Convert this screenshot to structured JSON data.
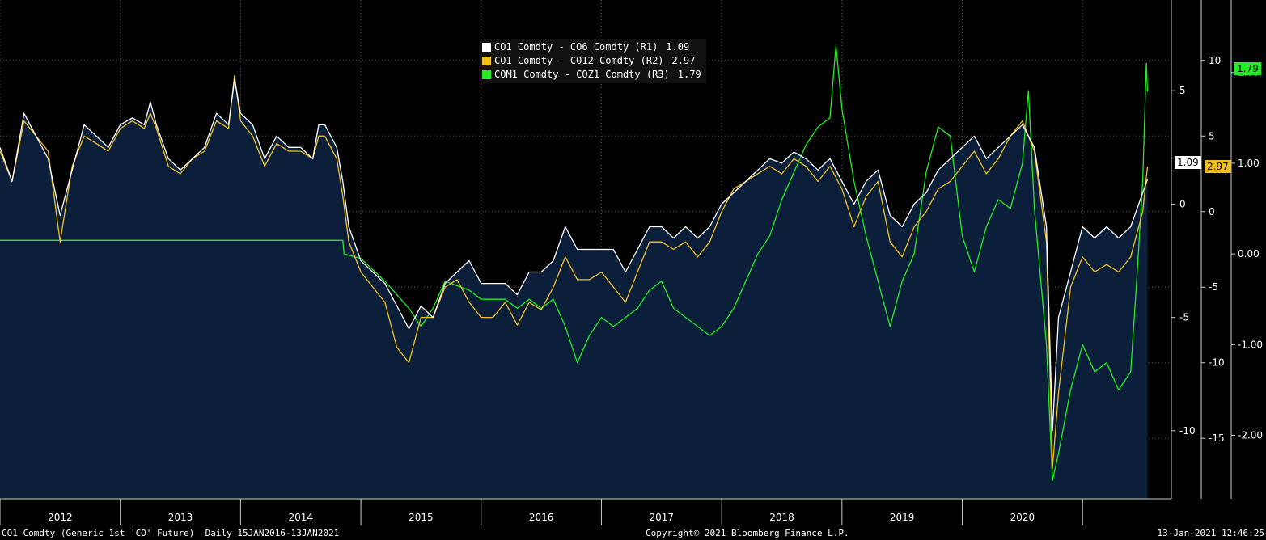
{
  "legend": [
    {
      "label": "CO1 Comdty - CO6 Comdty (R1)",
      "value": "1.09",
      "color": "#ffffff"
    },
    {
      "label": "CO1 Comdty - CO12 Comdty (R2)",
      "value": "2.97",
      "color": "#f0c020"
    },
    {
      "label": "COM1 Comdty - COZ1 Comdty (R3)",
      "value": "1.79",
      "color": "#22ee22"
    }
  ],
  "footer": {
    "left": "CO1 Comdty (Generic 1st 'CO' Future)  Daily 15JAN2016-13JAN2021",
    "center": "Copyright© 2021 Bloomberg Finance L.P.",
    "right": "13-Jan-2021 12:46:25"
  },
  "last_tags": {
    "r1": "1.09",
    "r2": "2.97",
    "r3": "1.79"
  },
  "colors": {
    "background": "#000000",
    "area": "#0b1e3a",
    "r1": "#ffffff",
    "r2": "#f0c020",
    "r3": "#22ee22"
  },
  "chart_data": {
    "type": "line",
    "x_tick_labels": [
      "2012",
      "2013",
      "2014",
      "2015",
      "2016",
      "2017",
      "2018",
      "2019",
      "2020"
    ],
    "axis_r1": {
      "ticks": [
        -10,
        -5,
        0,
        5
      ],
      "range": [
        -13,
        9
      ]
    },
    "axis_r2": {
      "ticks": [
        -15,
        -10,
        -5,
        0,
        5,
        10
      ],
      "range": [
        -19,
        14
      ]
    },
    "axis_r3": {
      "ticks": [
        "2.00",
        "1.00",
        "0.00",
        "-1.00",
        "-2.00"
      ],
      "range": [
        -2.7,
        2.8
      ]
    },
    "grid": true,
    "series": [
      {
        "name": "CO1 Comdty - CO6 Comdty (R1)",
        "axis": "r1",
        "area": true,
        "points": [
          [
            2011.5,
            2.5
          ],
          [
            2011.6,
            1
          ],
          [
            2011.7,
            4
          ],
          [
            2011.8,
            3
          ],
          [
            2011.9,
            2
          ],
          [
            2012.0,
            -0.5
          ],
          [
            2012.1,
            1.5
          ],
          [
            2012.2,
            3.5
          ],
          [
            2012.3,
            3
          ],
          [
            2012.4,
            2.5
          ],
          [
            2012.5,
            3.5
          ],
          [
            2012.6,
            3.8
          ],
          [
            2012.7,
            3.5
          ],
          [
            2012.75,
            4.5
          ],
          [
            2012.8,
            3.5
          ],
          [
            2012.9,
            2
          ],
          [
            2013.0,
            1.5
          ],
          [
            2013.1,
            2
          ],
          [
            2013.2,
            2.5
          ],
          [
            2013.3,
            4
          ],
          [
            2013.4,
            3.5
          ],
          [
            2013.45,
            5.5
          ],
          [
            2013.5,
            4
          ],
          [
            2013.6,
            3.5
          ],
          [
            2013.7,
            2
          ],
          [
            2013.8,
            3
          ],
          [
            2013.9,
            2.5
          ],
          [
            2014.0,
            2.5
          ],
          [
            2014.1,
            2
          ],
          [
            2014.15,
            3.5
          ],
          [
            2014.2,
            3.5
          ],
          [
            2014.3,
            2.5
          ],
          [
            2014.35,
            1
          ],
          [
            2014.4,
            -1
          ],
          [
            2014.5,
            -2.5
          ],
          [
            2014.6,
            -3
          ],
          [
            2014.7,
            -3.5
          ],
          [
            2014.8,
            -4.5
          ],
          [
            2014.9,
            -5.5
          ],
          [
            2015.0,
            -4.5
          ],
          [
            2015.1,
            -5
          ],
          [
            2015.2,
            -3.5
          ],
          [
            2015.3,
            -3
          ],
          [
            2015.4,
            -2.5
          ],
          [
            2015.5,
            -3.5
          ],
          [
            2015.6,
            -3.5
          ],
          [
            2015.7,
            -3.5
          ],
          [
            2015.8,
            -4
          ],
          [
            2015.9,
            -3
          ],
          [
            2016.0,
            -3
          ],
          [
            2016.1,
            -2.5
          ],
          [
            2016.2,
            -1
          ],
          [
            2016.3,
            -2
          ],
          [
            2016.4,
            -2
          ],
          [
            2016.5,
            -2
          ],
          [
            2016.6,
            -2
          ],
          [
            2016.7,
            -3
          ],
          [
            2016.8,
            -2
          ],
          [
            2016.9,
            -1
          ],
          [
            2017.0,
            -1
          ],
          [
            2017.1,
            -1.5
          ],
          [
            2017.2,
            -1
          ],
          [
            2017.3,
            -1.5
          ],
          [
            2017.4,
            -1
          ],
          [
            2017.5,
            0
          ],
          [
            2017.6,
            0.5
          ],
          [
            2017.7,
            1
          ],
          [
            2017.8,
            1.5
          ],
          [
            2017.9,
            2
          ],
          [
            2018.0,
            1.8
          ],
          [
            2018.1,
            2.3
          ],
          [
            2018.2,
            2
          ],
          [
            2018.3,
            1.5
          ],
          [
            2018.4,
            2
          ],
          [
            2018.5,
            1
          ],
          [
            2018.6,
            0
          ],
          [
            2018.7,
            1
          ],
          [
            2018.8,
            1.5
          ],
          [
            2018.9,
            -0.5
          ],
          [
            2019.0,
            -1
          ],
          [
            2019.1,
            0
          ],
          [
            2019.2,
            0.5
          ],
          [
            2019.3,
            1.5
          ],
          [
            2019.4,
            2
          ],
          [
            2019.5,
            2.5
          ],
          [
            2019.6,
            3
          ],
          [
            2019.7,
            2
          ],
          [
            2019.8,
            2.5
          ],
          [
            2019.9,
            3
          ],
          [
            2020.0,
            3.5
          ],
          [
            2020.1,
            2.5
          ],
          [
            2020.2,
            -1
          ],
          [
            2020.25,
            -10
          ],
          [
            2020.3,
            -5
          ],
          [
            2020.4,
            -3
          ],
          [
            2020.5,
            -1
          ],
          [
            2020.6,
            -1.5
          ],
          [
            2020.7,
            -1
          ],
          [
            2020.8,
            -1.5
          ],
          [
            2020.9,
            -1
          ],
          [
            2021.0,
            0.5
          ],
          [
            2021.04,
            1.09
          ]
        ]
      },
      {
        "name": "CO1 Comdty - CO12 Comdty (R2)",
        "axis": "r2",
        "points": [
          [
            2011.5,
            4
          ],
          [
            2011.6,
            2
          ],
          [
            2011.7,
            6
          ],
          [
            2011.8,
            5
          ],
          [
            2011.9,
            4
          ],
          [
            2012.0,
            -2
          ],
          [
            2012.1,
            3
          ],
          [
            2012.2,
            5
          ],
          [
            2012.3,
            4.5
          ],
          [
            2012.4,
            4
          ],
          [
            2012.5,
            5.5
          ],
          [
            2012.6,
            6
          ],
          [
            2012.7,
            5.5
          ],
          [
            2012.75,
            6.5
          ],
          [
            2012.8,
            5.5
          ],
          [
            2012.9,
            3
          ],
          [
            2013.0,
            2.5
          ],
          [
            2013.1,
            3.5
          ],
          [
            2013.2,
            4
          ],
          [
            2013.3,
            6
          ],
          [
            2013.4,
            5.5
          ],
          [
            2013.45,
            9
          ],
          [
            2013.5,
            6
          ],
          [
            2013.6,
            5
          ],
          [
            2013.7,
            3
          ],
          [
            2013.8,
            4.5
          ],
          [
            2013.9,
            4
          ],
          [
            2014.0,
            4
          ],
          [
            2014.1,
            3.5
          ],
          [
            2014.15,
            5
          ],
          [
            2014.2,
            5
          ],
          [
            2014.3,
            3.5
          ],
          [
            2014.35,
            1
          ],
          [
            2014.4,
            -2
          ],
          [
            2014.5,
            -4
          ],
          [
            2014.6,
            -5
          ],
          [
            2014.7,
            -6
          ],
          [
            2014.8,
            -9
          ],
          [
            2014.9,
            -10
          ],
          [
            2015.0,
            -7
          ],
          [
            2015.1,
            -7
          ],
          [
            2015.2,
            -5
          ],
          [
            2015.3,
            -4.5
          ],
          [
            2015.4,
            -6
          ],
          [
            2015.5,
            -7
          ],
          [
            2015.6,
            -7
          ],
          [
            2015.7,
            -6
          ],
          [
            2015.8,
            -7.5
          ],
          [
            2015.9,
            -6
          ],
          [
            2016.0,
            -6.5
          ],
          [
            2016.1,
            -5
          ],
          [
            2016.2,
            -3
          ],
          [
            2016.3,
            -4.5
          ],
          [
            2016.4,
            -4.5
          ],
          [
            2016.5,
            -4
          ],
          [
            2016.6,
            -5
          ],
          [
            2016.7,
            -6
          ],
          [
            2016.8,
            -4
          ],
          [
            2016.9,
            -2
          ],
          [
            2017.0,
            -2
          ],
          [
            2017.1,
            -2.5
          ],
          [
            2017.2,
            -2
          ],
          [
            2017.3,
            -3
          ],
          [
            2017.4,
            -2
          ],
          [
            2017.5,
            0
          ],
          [
            2017.6,
            1.5
          ],
          [
            2017.7,
            2
          ],
          [
            2017.8,
            2.5
          ],
          [
            2017.9,
            3
          ],
          [
            2018.0,
            2.5
          ],
          [
            2018.1,
            3.5
          ],
          [
            2018.2,
            3
          ],
          [
            2018.3,
            2
          ],
          [
            2018.4,
            3
          ],
          [
            2018.5,
            1.5
          ],
          [
            2018.6,
            -1
          ],
          [
            2018.7,
            1
          ],
          [
            2018.8,
            2
          ],
          [
            2018.9,
            -2
          ],
          [
            2019.0,
            -3
          ],
          [
            2019.1,
            -1
          ],
          [
            2019.2,
            0
          ],
          [
            2019.3,
            1.5
          ],
          [
            2019.4,
            2
          ],
          [
            2019.5,
            3
          ],
          [
            2019.6,
            4
          ],
          [
            2019.7,
            2.5
          ],
          [
            2019.8,
            3.5
          ],
          [
            2019.9,
            5
          ],
          [
            2020.0,
            6
          ],
          [
            2020.1,
            4
          ],
          [
            2020.2,
            -2
          ],
          [
            2020.25,
            -17
          ],
          [
            2020.3,
            -12
          ],
          [
            2020.4,
            -5
          ],
          [
            2020.5,
            -3
          ],
          [
            2020.6,
            -4
          ],
          [
            2020.7,
            -3.5
          ],
          [
            2020.8,
            -4
          ],
          [
            2020.9,
            -3
          ],
          [
            2021.0,
            0
          ],
          [
            2021.04,
            2.97
          ]
        ]
      },
      {
        "name": "COM1 Comdty - COZ1 Comdty (R3)",
        "axis": "r3",
        "points": [
          [
            2011.5,
            0.15
          ],
          [
            2014.35,
            0.15
          ],
          [
            2014.36,
            0.0
          ],
          [
            2014.5,
            -0.05
          ],
          [
            2014.7,
            -0.3
          ],
          [
            2014.9,
            -0.6
          ],
          [
            2015.0,
            -0.8
          ],
          [
            2015.1,
            -0.6
          ],
          [
            2015.2,
            -0.3
          ],
          [
            2015.4,
            -0.4
          ],
          [
            2015.5,
            -0.5
          ],
          [
            2015.7,
            -0.5
          ],
          [
            2015.8,
            -0.6
          ],
          [
            2015.9,
            -0.5
          ],
          [
            2016.0,
            -0.6
          ],
          [
            2016.1,
            -0.5
          ],
          [
            2016.2,
            -0.8
          ],
          [
            2016.3,
            -1.2
          ],
          [
            2016.4,
            -0.9
          ],
          [
            2016.5,
            -0.7
          ],
          [
            2016.6,
            -0.8
          ],
          [
            2016.7,
            -0.7
          ],
          [
            2016.8,
            -0.6
          ],
          [
            2016.9,
            -0.4
          ],
          [
            2017.0,
            -0.3
          ],
          [
            2017.1,
            -0.6
          ],
          [
            2017.2,
            -0.7
          ],
          [
            2017.3,
            -0.8
          ],
          [
            2017.4,
            -0.9
          ],
          [
            2017.5,
            -0.8
          ],
          [
            2017.6,
            -0.6
          ],
          [
            2017.7,
            -0.3
          ],
          [
            2017.8,
            0
          ],
          [
            2017.9,
            0.2
          ],
          [
            2018.0,
            0.6
          ],
          [
            2018.1,
            0.9
          ],
          [
            2018.2,
            1.2
          ],
          [
            2018.3,
            1.4
          ],
          [
            2018.4,
            1.5
          ],
          [
            2018.45,
            2.3
          ],
          [
            2018.5,
            1.6
          ],
          [
            2018.6,
            0.8
          ],
          [
            2018.7,
            0.2
          ],
          [
            2018.8,
            -0.3
          ],
          [
            2018.9,
            -0.8
          ],
          [
            2019.0,
            -0.3
          ],
          [
            2019.1,
            0
          ],
          [
            2019.2,
            0.9
          ],
          [
            2019.3,
            1.4
          ],
          [
            2019.4,
            1.3
          ],
          [
            2019.5,
            0.2
          ],
          [
            2019.6,
            -0.2
          ],
          [
            2019.7,
            0.3
          ],
          [
            2019.8,
            0.6
          ],
          [
            2019.9,
            0.5
          ],
          [
            2020.0,
            1
          ],
          [
            2020.05,
            1.8
          ],
          [
            2020.1,
            0.5
          ],
          [
            2020.2,
            -1
          ],
          [
            2020.25,
            -2.5
          ],
          [
            2020.3,
            -2.2
          ],
          [
            2020.4,
            -1.5
          ],
          [
            2020.5,
            -1
          ],
          [
            2020.6,
            -1.3
          ],
          [
            2020.7,
            -1.2
          ],
          [
            2020.8,
            -1.5
          ],
          [
            2020.9,
            -1.3
          ],
          [
            2020.95,
            -0.3
          ],
          [
            2021.0,
            0.8
          ],
          [
            2021.03,
            2.1
          ],
          [
            2021.04,
            1.79
          ]
        ]
      }
    ]
  }
}
